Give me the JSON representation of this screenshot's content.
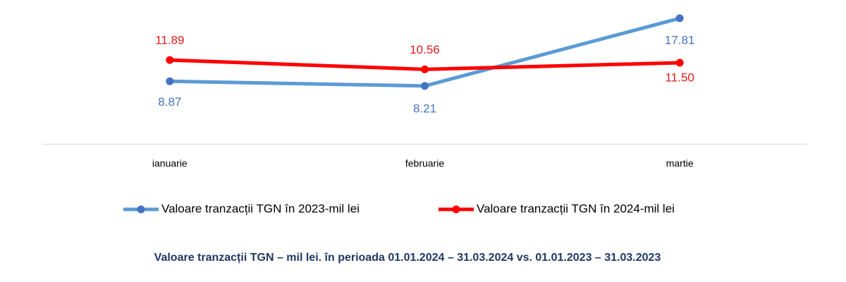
{
  "chart_data": {
    "type": "line",
    "caption": "Valoare tranzacții TGN – mil lei.  în perioada 01.01.2024  – 31.03.2024  vs. 01.01.2023  – 31.03.2023",
    "categories": [
      "ianuarie",
      "februarie",
      "martie"
    ],
    "ylim": [
      0,
      20
    ],
    "series": [
      {
        "name": "Valoare tranzacții TGN în 2023-mil lei",
        "color": "#5b9bd5",
        "values": [
          8.87,
          8.21,
          17.81
        ],
        "value_labels": [
          "8.87",
          "8.21",
          "17.81"
        ]
      },
      {
        "name": "Valoare tranzacții TGN în 2024-mil lei",
        "color": "#ff0000",
        "values": [
          11.89,
          10.56,
          11.5
        ],
        "value_labels": [
          "11.89",
          "10.56",
          "11.50"
        ]
      }
    ]
  }
}
